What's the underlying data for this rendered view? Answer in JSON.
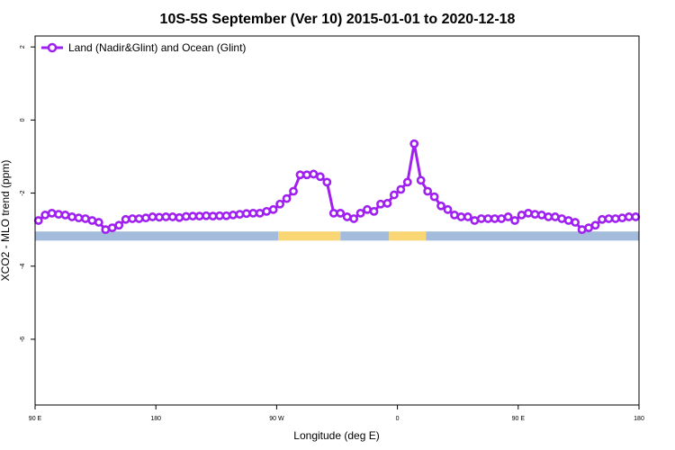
{
  "chart_data": {
    "type": "line",
    "title": "10S-5S September (Ver 10)   2015-01-01 to 2020-12-18",
    "xlabel": "Longitude (deg E)",
    "ylabel": "XCO2 - MLO trend (ppm)",
    "xlim": [
      90,
      450
    ],
    "ylim": [
      -7.8,
      2.3
    ],
    "x_ticks": [
      {
        "value": 90,
        "label": "90 E"
      },
      {
        "value": 162,
        "label": "180"
      },
      {
        "value": 234,
        "label": "90 W"
      },
      {
        "value": 306,
        "label": "0"
      },
      {
        "value": 378,
        "label": "90 E"
      },
      {
        "value": 450,
        "label": "180"
      }
    ],
    "y_ticks": [
      {
        "value": 2,
        "label": "2"
      },
      {
        "value": 0,
        "label": "0"
      },
      {
        "value": -2,
        "label": "-2"
      },
      {
        "value": -4,
        "label": "-4"
      },
      {
        "value": -6,
        "label": "-6"
      }
    ],
    "grid": false,
    "legend": "top-left",
    "colors": {
      "series": "#a020f0",
      "ocean": "#a4bcdc",
      "land": "#f9d673"
    },
    "series": [
      {
        "name": "Land (Nadir&Glint) and Ocean (Glint)",
        "x": [
          92,
          96,
          100,
          104,
          108,
          112,
          116,
          120,
          124,
          128,
          132,
          136,
          140,
          144,
          148,
          152,
          156,
          160,
          164,
          168,
          172,
          176,
          180,
          184,
          188,
          192,
          196,
          200,
          204,
          208,
          212,
          216,
          220,
          224,
          228,
          232,
          236,
          240,
          244,
          248,
          252,
          256,
          260,
          264,
          268,
          272,
          276,
          280,
          284,
          288,
          292,
          296,
          300,
          304,
          308,
          312,
          316,
          320,
          324,
          328,
          332,
          336,
          340,
          344,
          348,
          352,
          356,
          360,
          364,
          368,
          372,
          376,
          380,
          384,
          388,
          392,
          396,
          400,
          404,
          408,
          412,
          416,
          420,
          424,
          428,
          432,
          436,
          440,
          444,
          448
        ],
        "y": [
          -2.75,
          -2.6,
          -2.55,
          -2.58,
          -2.6,
          -2.65,
          -2.68,
          -2.7,
          -2.75,
          -2.8,
          -3.0,
          -2.95,
          -2.88,
          -2.72,
          -2.7,
          -2.7,
          -2.68,
          -2.65,
          -2.66,
          -2.65,
          -2.65,
          -2.67,
          -2.64,
          -2.63,
          -2.63,
          -2.62,
          -2.63,
          -2.62,
          -2.62,
          -2.6,
          -2.58,
          -2.56,
          -2.55,
          -2.55,
          -2.5,
          -2.45,
          -2.3,
          -2.15,
          -1.95,
          -1.5,
          -1.5,
          -1.48,
          -1.55,
          -1.7,
          -2.55,
          -2.55,
          -2.65,
          -2.7,
          -2.55,
          -2.45,
          -2.5,
          -2.3,
          -2.28,
          -2.05,
          -1.9,
          -1.7,
          -0.65,
          -1.65,
          -1.95,
          -2.1,
          -2.35,
          -2.45,
          -2.6,
          -2.65,
          -2.65,
          -2.75,
          -2.7,
          -2.7,
          -2.7,
          -2.7,
          -2.65,
          -2.75,
          -2.6,
          -2.55,
          -2.58,
          -2.6,
          -2.65,
          -2.65,
          -2.7,
          -2.75,
          -2.8,
          -3.0,
          -2.95,
          -2.88,
          -2.72,
          -2.7,
          -2.7,
          -2.68,
          -2.65,
          -2.65
        ]
      }
    ],
    "background_band": {
      "y_range": [
        -3.05,
        -3.3
      ],
      "segments": [
        {
          "type": "ocean",
          "x": [
            90,
            235
          ]
        },
        {
          "type": "land",
          "x": [
            235,
            272
          ]
        },
        {
          "type": "ocean",
          "x": [
            272,
            301
          ]
        },
        {
          "type": "land",
          "x": [
            301,
            323
          ]
        },
        {
          "type": "ocean",
          "x": [
            323,
            450
          ]
        }
      ]
    }
  }
}
